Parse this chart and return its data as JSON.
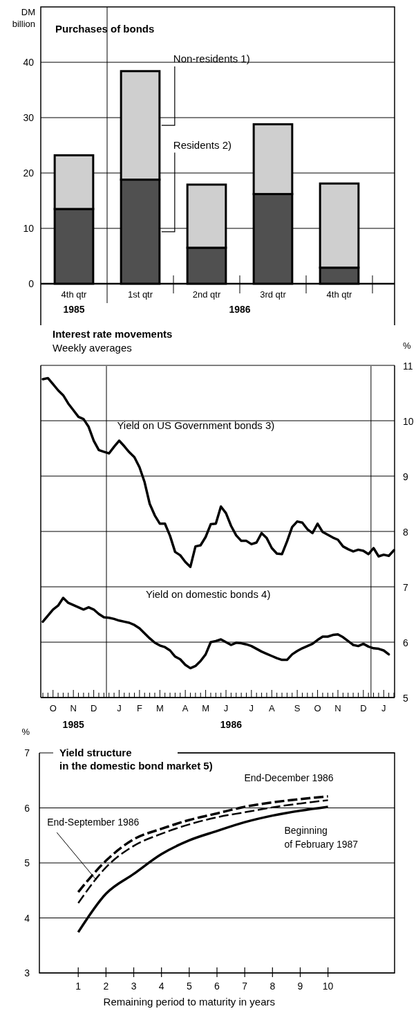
{
  "chart_data": [
    {
      "type": "bar",
      "title": "Purchases of bonds",
      "ylabel": "DM billion",
      "categories": [
        "4th qtr",
        "1st qtr",
        "2nd qtr",
        "3rd qtr",
        "4th qtr"
      ],
      "stacked": true,
      "series": [
        {
          "name": "Residents 2)",
          "color": "#505050",
          "values": [
            13.5,
            18.8,
            6.5,
            16.2,
            2.9
          ]
        },
        {
          "name": "Non-residents 1)",
          "color": "#cfcfcf",
          "values": [
            9.7,
            19.6,
            11.4,
            12.6,
            15.2
          ]
        }
      ],
      "ylim": [
        0,
        50
      ],
      "yticks": [
        0,
        10,
        20,
        30,
        40
      ],
      "grid": "y",
      "annotations": [
        "1985",
        "1986"
      ]
    },
    {
      "type": "line",
      "title": "Interest rate movements",
      "subtitle": "Weekly averages",
      "ylabel": "%",
      "categories": [
        null,
        null,
        "O",
        null,
        null,
        null,
        "N",
        null,
        null,
        null,
        "D",
        null,
        null,
        null,
        null,
        "J",
        null,
        null,
        null,
        "F",
        null,
        null,
        null,
        "M",
        null,
        null,
        null,
        null,
        "A",
        null,
        null,
        null,
        "M",
        null,
        null,
        null,
        "J",
        null,
        null,
        null,
        null,
        "J",
        null,
        null,
        null,
        "A",
        null,
        null,
        null,
        null,
        "S",
        null,
        null,
        null,
        "O",
        null,
        null,
        null,
        "N",
        null,
        null,
        null,
        null,
        "D",
        null,
        null,
        null,
        "J",
        null,
        null
      ],
      "ylim": [
        5,
        11
      ],
      "yticks": [
        5,
        6,
        7,
        8,
        9,
        10,
        11
      ],
      "grid": "y",
      "annotations": [
        "1985",
        "1986"
      ],
      "series": [
        {
          "name": "Yield on US Government bonds 3)",
          "color": "#000000",
          "values": [
            10.75,
            10.77,
            10.66,
            10.55,
            10.46,
            10.31,
            10.19,
            10.07,
            10.03,
            9.89,
            9.64,
            9.47,
            9.44,
            9.41,
            9.53,
            9.64,
            9.54,
            9.43,
            9.34,
            9.16,
            8.89,
            8.5,
            8.29,
            8.14,
            8.14,
            7.92,
            7.63,
            7.57,
            7.45,
            7.36,
            7.73,
            7.75,
            7.9,
            8.13,
            8.14,
            8.45,
            8.33,
            8.1,
            7.93,
            7.83,
            7.83,
            7.77,
            7.8,
            7.97,
            7.88,
            7.7,
            7.6,
            7.59,
            7.82,
            8.08,
            8.18,
            8.16,
            8.04,
            7.97,
            8.14,
            7.99,
            7.94,
            7.89,
            7.85,
            7.73,
            7.68,
            7.64,
            7.67,
            7.65,
            7.59,
            7.7,
            7.55,
            7.58,
            7.56,
            7.66
          ]
        },
        {
          "name": "Yield on domestic bonds 4)",
          "color": "#000000",
          "values": [
            6.37,
            6.48,
            6.59,
            6.66,
            6.8,
            6.71,
            6.67,
            6.63,
            6.59,
            6.63,
            6.59,
            6.51,
            6.45,
            6.44,
            6.42,
            6.39,
            6.37,
            6.35,
            6.31,
            6.25,
            6.16,
            6.07,
            5.99,
            5.94,
            5.91,
            5.85,
            5.74,
            5.69,
            5.59,
            5.53,
            5.57,
            5.66,
            5.78,
            6.0,
            6.02,
            6.05,
            6.0,
            5.95,
            5.99,
            5.98,
            5.96,
            5.93,
            5.88,
            5.83,
            5.79,
            5.75,
            5.71,
            5.68,
            5.68,
            5.78,
            5.84,
            5.89,
            5.93,
            5.97,
            6.04,
            6.1,
            6.1,
            6.13,
            6.14,
            6.09,
            6.02,
            5.95,
            5.93,
            5.97,
            5.92,
            5.89,
            5.88,
            5.85,
            5.78,
            null
          ]
        }
      ]
    },
    {
      "type": "line",
      "title": "Yield structure",
      "subtitle": "in the domestic bond market 5)",
      "ylabel": "%",
      "xlabel": "Remaining period to maturity in years",
      "x": [
        1,
        2,
        3,
        4,
        5,
        6,
        7,
        8,
        9,
        10
      ],
      "xlim": [
        -0.4,
        12.4
      ],
      "xticks": [
        1,
        2,
        3,
        4,
        5,
        6,
        7,
        8,
        9,
        10
      ],
      "ylim": [
        3,
        7
      ],
      "yticks": [
        3,
        4,
        5,
        6,
        7
      ],
      "grid": "y",
      "series": [
        {
          "name": "End-December 1986",
          "color": "#000000",
          "line_style": "dashed",
          "values": [
            4.47,
            5.04,
            5.43,
            5.62,
            5.78,
            5.9,
            6.02,
            6.1,
            6.16,
            6.21
          ]
        },
        {
          "name": "End-September 1986",
          "color": "#000000",
          "line_style": "dashed",
          "values": [
            4.27,
            4.92,
            5.31,
            5.53,
            5.7,
            5.83,
            5.92,
            6.01,
            6.08,
            6.14
          ]
        },
        {
          "name": "Beginning of February 1987",
          "color": "#000000",
          "line_style": "solid",
          "values": [
            3.74,
            4.44,
            4.8,
            5.16,
            5.41,
            5.58,
            5.74,
            5.86,
            5.95,
            6.02
          ]
        }
      ]
    }
  ]
}
